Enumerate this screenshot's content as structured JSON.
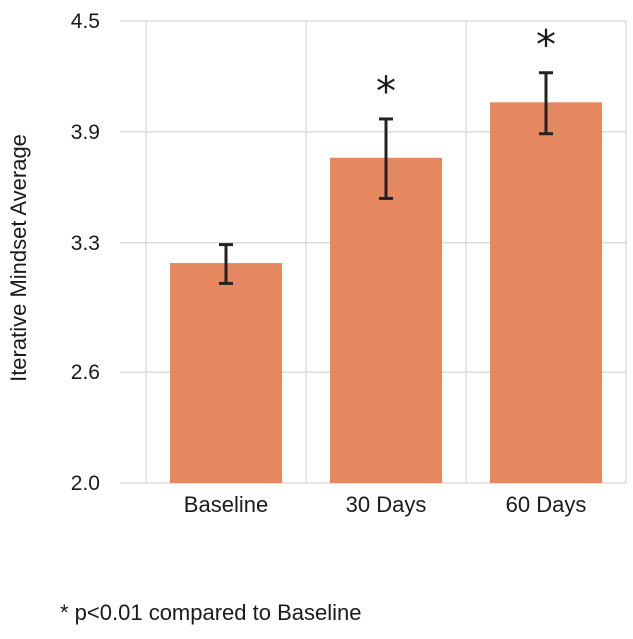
{
  "chart_data": {
    "type": "bar",
    "title": "",
    "xlabel": "",
    "ylabel": "Iterative Mindset Average",
    "categories": [
      "Baseline",
      "30 Days",
      "60 Days"
    ],
    "values": [
      3.19,
      3.76,
      4.06
    ],
    "error_low": [
      3.08,
      3.54,
      3.89
    ],
    "error_high": [
      3.29,
      3.97,
      4.22
    ],
    "significance": [
      "",
      "*",
      "*"
    ],
    "yticks": [
      2.0,
      2.6,
      3.3,
      3.9,
      4.5
    ],
    "ytick_labels": [
      "2.0",
      "2.6",
      "3.3",
      "3.9",
      "4.5"
    ],
    "ylim": [
      2.0,
      4.5
    ],
    "grid": true,
    "bar_color": "#E5875F",
    "errorbar_color": "#222222",
    "grid_color": "#CCCCCC"
  },
  "footnote": "* p<0.01 compared to Baseline"
}
